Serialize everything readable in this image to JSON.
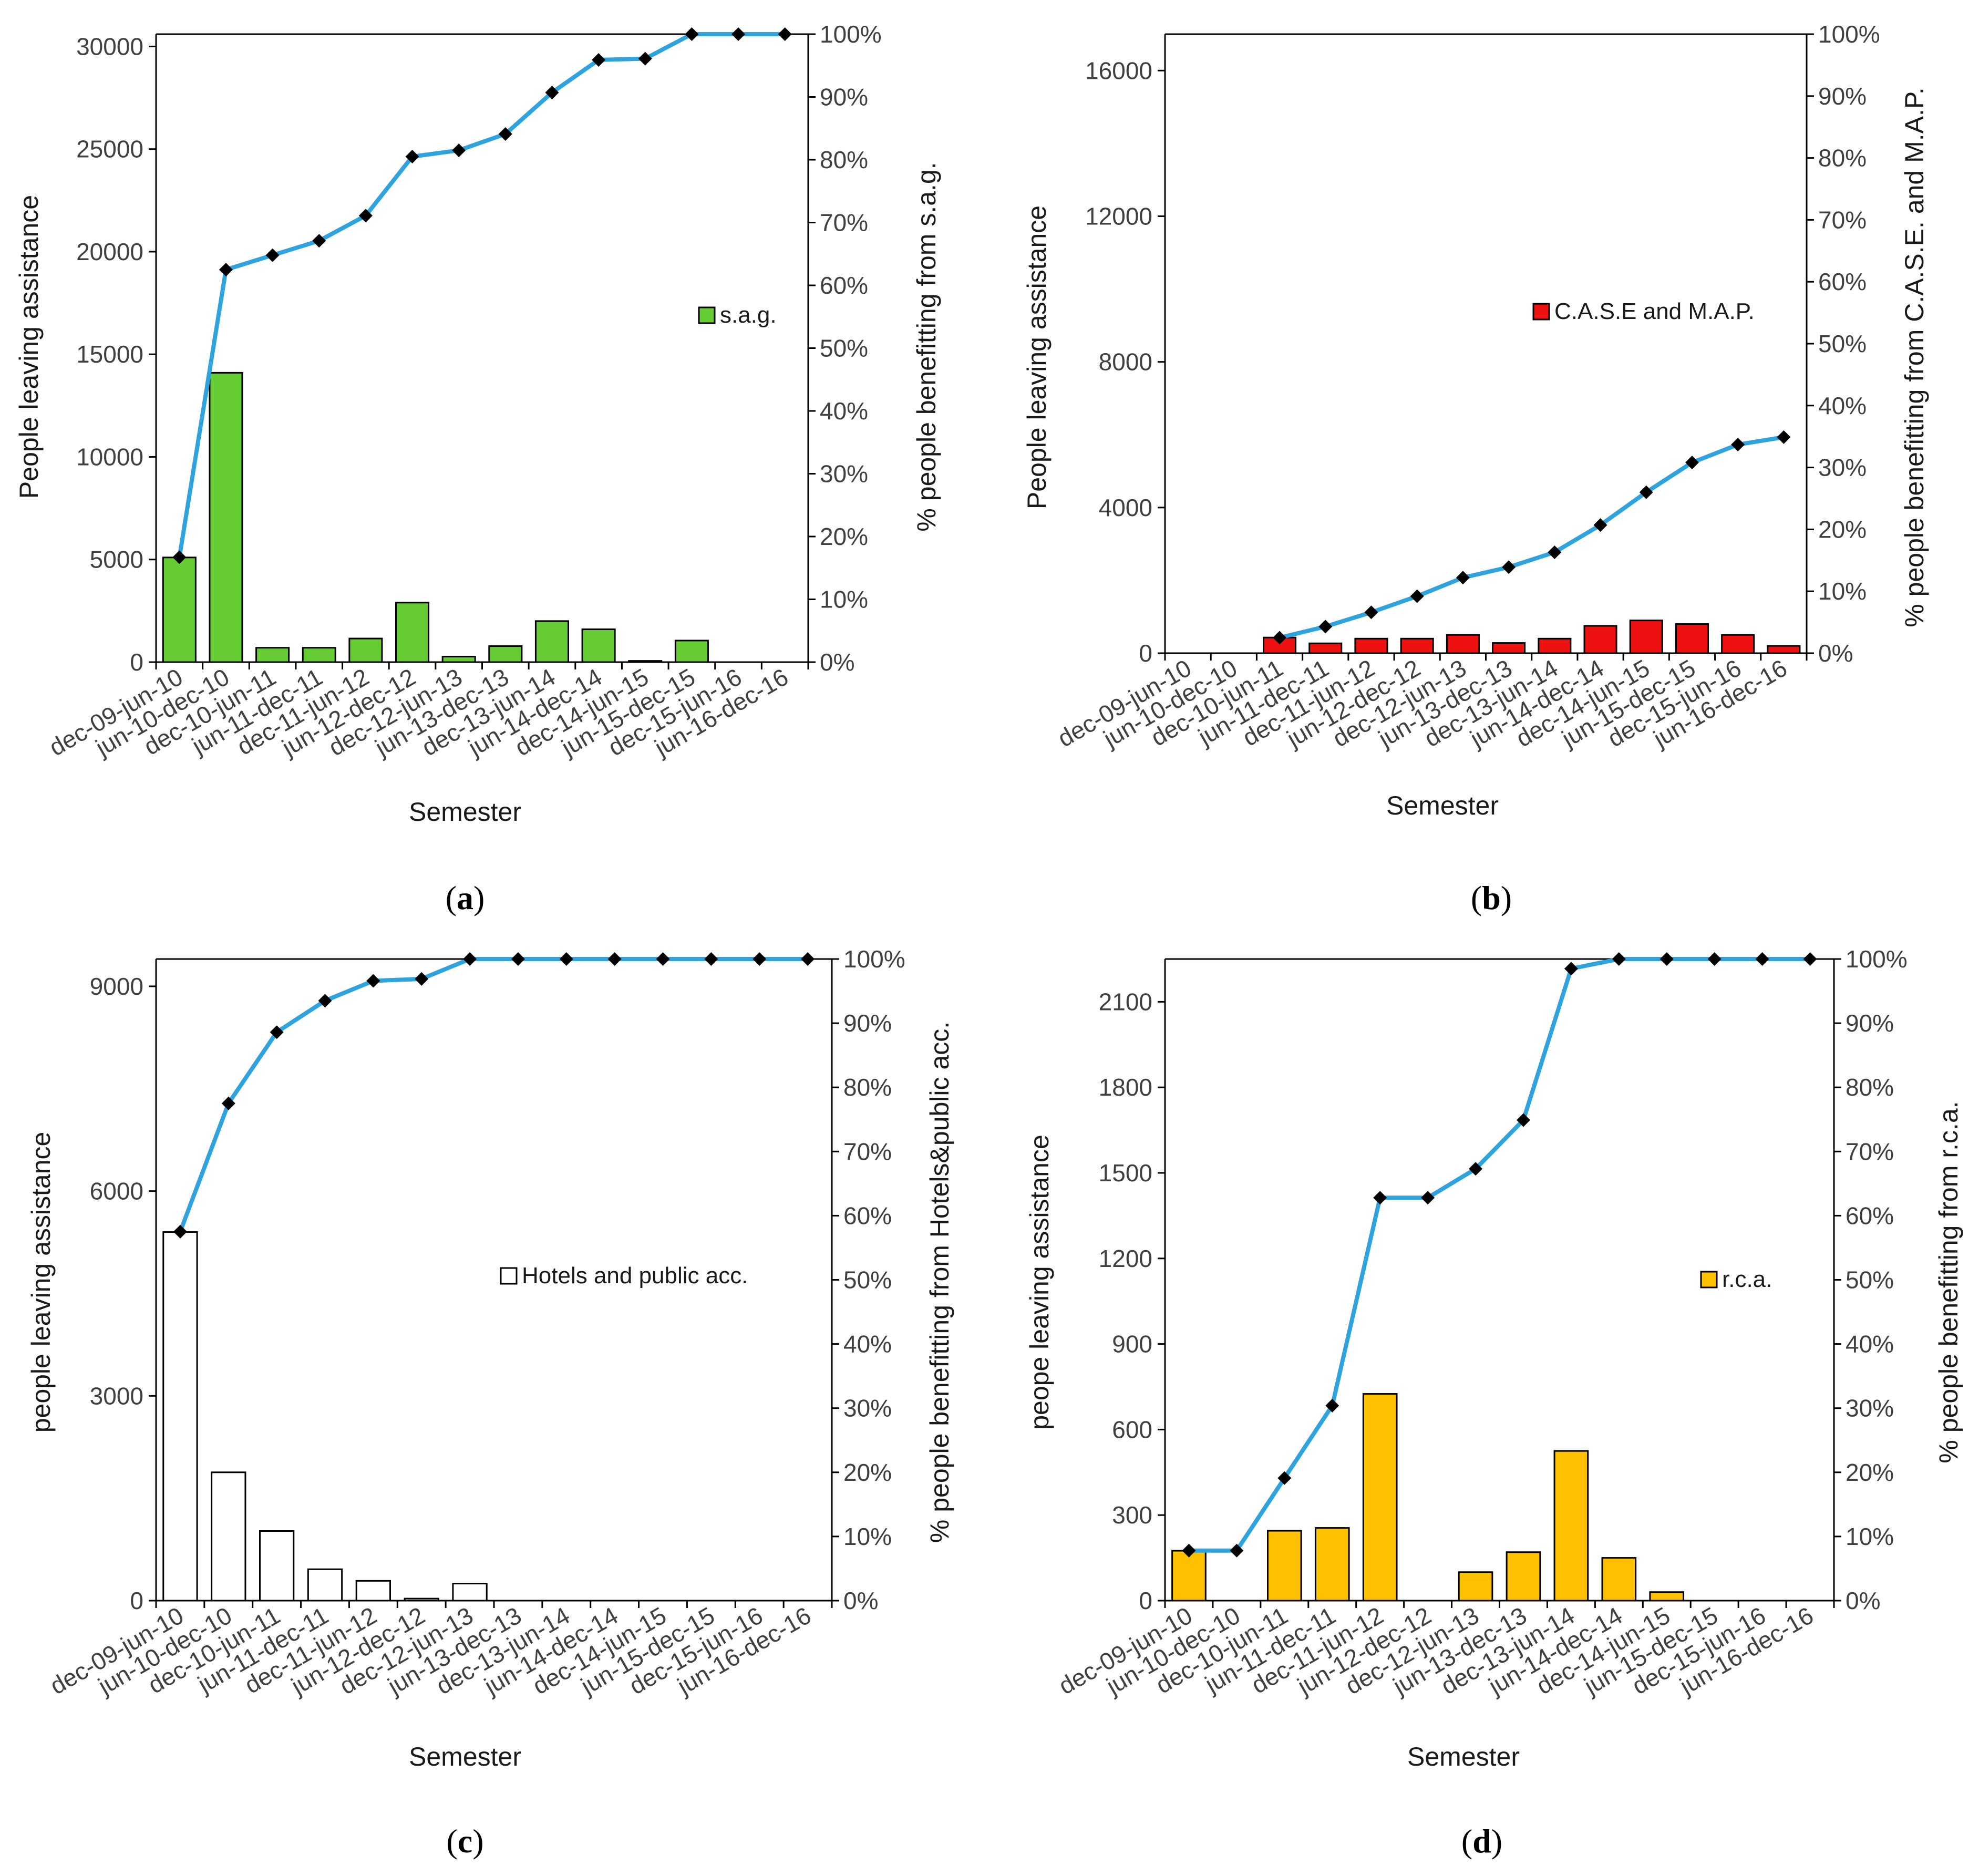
{
  "categories": [
    "dec-09-jun-10",
    "jun-10-dec-10",
    "dec-10-jun-11",
    "jun-11-dec-11",
    "dec-11-jun-12",
    "jun-12-dec-12",
    "dec-12-jun-13",
    "jun-13-dec-13",
    "dec-13-jun-14",
    "jun-14-dec-14",
    "dec-14-jun-15",
    "jun-15-dec-15",
    "dec-15-jun-16",
    "jun-16-dec-16"
  ],
  "chart_data": [
    {
      "id": "a",
      "type": "bar+line",
      "caption_letter": "a",
      "xlabel": "Semester",
      "ylabel": "People leaving assistance",
      "y2label": "% people benefitting from s.a.g.",
      "legend": "s.a.g.",
      "legend_position": "right-middle",
      "bar_color": "#66cc33",
      "ylim": [
        0,
        30600
      ],
      "yticks": [
        0,
        5000,
        10000,
        15000,
        20000,
        25000,
        30000
      ],
      "values": [
        5100,
        14100,
        700,
        700,
        1150,
        2900,
        270,
        780,
        2000,
        1600,
        60,
        1050,
        0,
        0
      ],
      "percent": [
        16.7,
        62.5,
        64.8,
        67.1,
        71.1,
        80.5,
        81.5,
        84.1,
        90.7,
        95.9,
        96.1,
        100,
        100,
        100
      ]
    },
    {
      "id": "b",
      "type": "bar+line",
      "caption_letter": "b",
      "xlabel": "Semester",
      "ylabel": "People leaving assistance",
      "y2label": "% people benefitting from C.A.S.E. and M.A.P.",
      "legend": "C.A.S.E and M.A.P.",
      "legend_position": "right-middle",
      "bar_color": "#ee1111",
      "ylim": [
        0,
        17000
      ],
      "yticks": [
        0,
        4000,
        8000,
        12000,
        16000
      ],
      "values": [
        0,
        0,
        430,
        270,
        400,
        400,
        500,
        280,
        400,
        750,
        900,
        800,
        500,
        200
      ],
      "percent": [
        null,
        null,
        2.5,
        4.3,
        6.6,
        9.2,
        12.2,
        13.9,
        16.3,
        20.7,
        26.0,
        30.8,
        33.7,
        34.9
      ]
    },
    {
      "id": "c",
      "type": "bar+line",
      "caption_letter": "c",
      "xlabel": "Semester",
      "ylabel": "people leaving assistance",
      "y2label": "% people benefitting from Hotels&public acc.",
      "legend": "Hotels and public acc.",
      "legend_position": "right-middle",
      "bar_color": "#ffffff",
      "ylim": [
        0,
        9400
      ],
      "yticks": [
        0,
        3000,
        6000,
        9000
      ],
      "values": [
        5400,
        1880,
        1020,
        460,
        290,
        30,
        250,
        0,
        0,
        0,
        0,
        0,
        0,
        0
      ],
      "percent": [
        57.5,
        77.5,
        88.6,
        93.5,
        96.6,
        96.9,
        100,
        100,
        100,
        100,
        100,
        100,
        100,
        100
      ]
    },
    {
      "id": "d",
      "type": "bar+line",
      "caption_letter": "d",
      "xlabel": "Semester",
      "ylabel": "peope leaving assistance",
      "y2label": "% people benefitting from r.c.a.",
      "legend": "r.c.a.",
      "legend_position": "right-middle",
      "bar_color": "#ffc000",
      "ylim": [
        0,
        2250
      ],
      "yticks": [
        0,
        300,
        600,
        900,
        1200,
        1500,
        1800,
        2100
      ],
      "values": [
        175,
        0,
        245,
        255,
        725,
        0,
        100,
        170,
        525,
        150,
        30,
        0,
        0,
        0
      ],
      "percent": [
        7.8,
        7.8,
        19.1,
        30.4,
        62.8,
        62.8,
        67.3,
        74.9,
        98.5,
        100,
        100,
        100,
        100,
        100
      ]
    }
  ],
  "y2ticks": [
    "0%",
    "10%",
    "20%",
    "30%",
    "40%",
    "50%",
    "60%",
    "70%",
    "80%",
    "90%",
    "100%"
  ],
  "colors": {
    "line": "#2ea3dd",
    "marker": "#000000"
  }
}
